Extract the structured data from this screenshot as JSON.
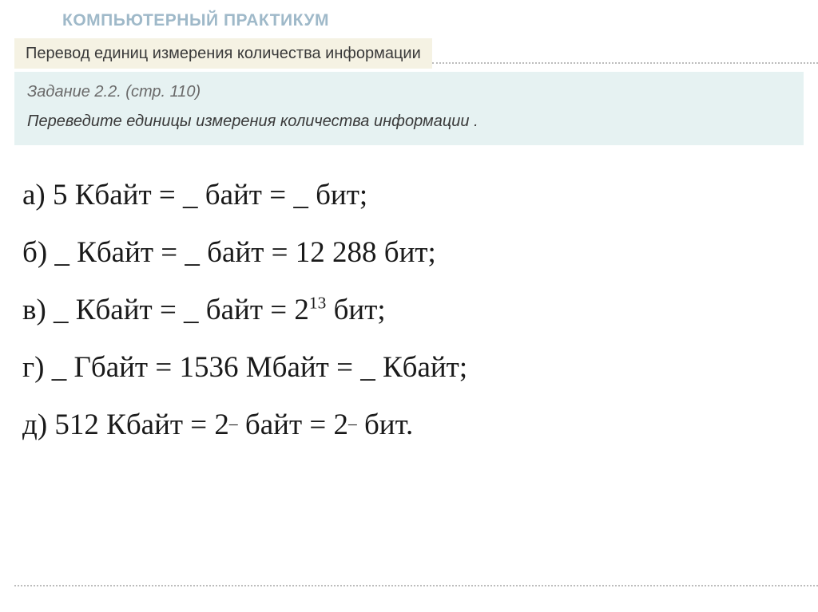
{
  "header": {
    "title": "КОМПЬЮТЕРНЫЙ ПРАКТИКУМ"
  },
  "subtitle": "Перевод единиц измерения количества информации",
  "task": {
    "ref": "Задание 2.2. (стр. 110)",
    "desc": "Переведите  единицы измерения количества информации ."
  },
  "exercises": {
    "a": "а) 5 Кбайт = _  байт = _  бит;",
    "b": "б) _  Кбайт = _  байт = 12 288 бит;",
    "c_prefix": "в) _  Кбайт = _  байт = 2",
    "c_sup": "13",
    "c_suffix": " бит;",
    "d": "г) _  Гбайт = 1536 Мбайт = _  Кбайт;",
    "e_prefix": "д) 512 Кбайт = 2",
    "e_sup1": "_",
    "e_mid": " байт = 2",
    "e_sup2": "_",
    "e_suffix": " бит."
  },
  "colors": {
    "title_color": "#9fb9c9",
    "subtitle_bg": "#f5f2e3",
    "task_bg": "#e6f2f2",
    "text_dark": "#1a1a1a",
    "text_gray": "#6a6a6a",
    "dotted": "#bcbcbc"
  }
}
